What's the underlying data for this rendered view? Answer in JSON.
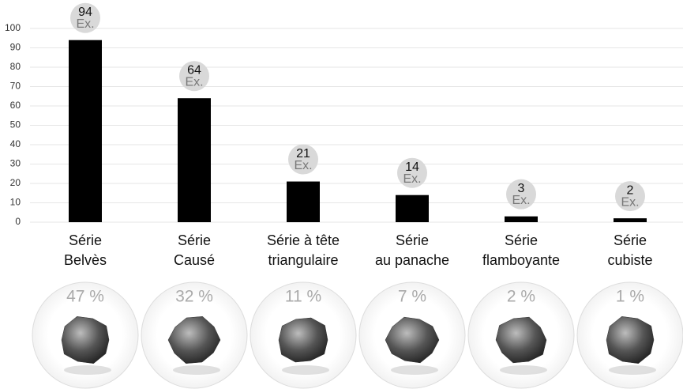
{
  "chart_data": {
    "type": "bar",
    "categories": [
      [
        "Série",
        "Belvès"
      ],
      [
        "Série",
        "Causé"
      ],
      [
        "Série à tête",
        "triangulaire"
      ],
      [
        "Série",
        "au panache"
      ],
      [
        "Série",
        "flamboyante"
      ],
      [
        "Série",
        "cubiste"
      ]
    ],
    "values": [
      94,
      64,
      21,
      14,
      3,
      2
    ],
    "value_unit": "Ex.",
    "color": "#000000",
    "ylim": [
      0,
      100
    ],
    "yticks": [
      0,
      10,
      20,
      30,
      40,
      50,
      60,
      70,
      80,
      90,
      100
    ],
    "grid": true,
    "share": {
      "values": [
        47,
        32,
        11,
        7,
        2,
        1
      ],
      "value_labels": [
        "47 %",
        "32 %",
        "11 %",
        "7 %",
        "2 %",
        "1 %"
      ]
    }
  }
}
